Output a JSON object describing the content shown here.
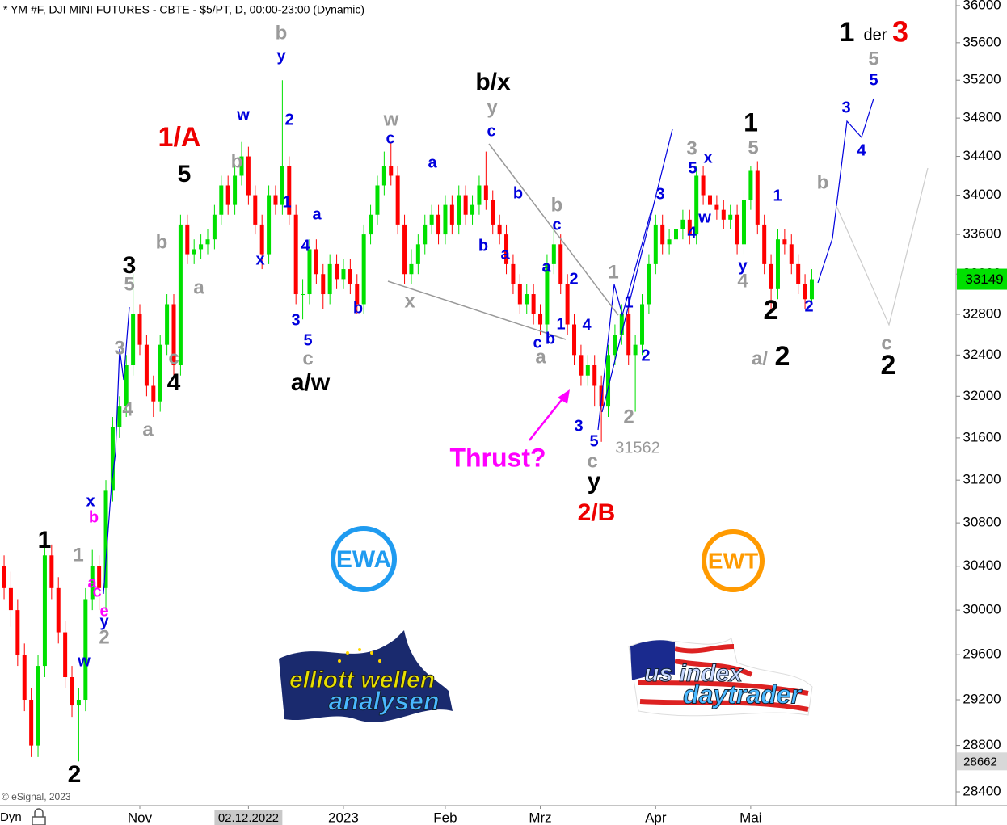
{
  "chart_data": {
    "type": "candlestick",
    "title": "* YM #F, DJI MINI FUTURES - CBTE - $5/PT, D, 00:00-23:00 (Dynamic)",
    "copyright": "© eSignal, 2023",
    "axis_mode": "Dyn",
    "log": true,
    "up_color": "#00e000",
    "down_color": "#ff0000",
    "open": [
      30400,
      30200,
      30000,
      29600,
      29200,
      28800,
      29500,
      30500,
      30200,
      29800,
      29400,
      29150,
      29200,
      30100,
      30400,
      30200,
      31100,
      31700,
      31900,
      32300,
      32800,
      32500,
      32100,
      31950,
      32500,
      32900,
      32300,
      33700,
      33400,
      33450,
      33500,
      33550,
      33800,
      34100,
      33900,
      34200,
      34400,
      34000,
      33700,
      33400,
      34000,
      33900,
      34300,
      33800,
      33000,
      33000,
      33450,
      33200,
      33000,
      33300,
      33150,
      33250,
      33100,
      32900,
      33600,
      33800,
      34100,
      34300,
      34200,
      33700,
      33200,
      33300,
      33500,
      33700,
      33800,
      33600,
      33900,
      33700,
      34000,
      33800,
      33900,
      34100,
      33950,
      33700,
      33600,
      33300,
      33100,
      32900,
      33000,
      32800,
      32700,
      33300,
      33500,
      33100,
      32700,
      32400,
      32200,
      32300,
      32100,
      31900,
      32400,
      32600,
      32800,
      32400,
      32500,
      32900,
      33300,
      33700,
      33500,
      33550,
      33650,
      33750,
      33600,
      34200,
      34000,
      33900,
      33850,
      33750,
      33800,
      33500,
      33950,
      34250,
      33700,
      33300,
      33050,
      33550,
      33500,
      33300,
      33100,
      32950
    ],
    "high": [
      30500,
      30350,
      30100,
      29700,
      29300,
      29600,
      30650,
      30600,
      30300,
      29900,
      29500,
      29300,
      30200,
      30550,
      30500,
      31200,
      31800,
      32000,
      32400,
      33200,
      32900,
      32600,
      32200,
      32600,
      33000,
      33000,
      33800,
      33800,
      33550,
      33600,
      33650,
      33900,
      34200,
      34200,
      34300,
      34550,
      34500,
      34100,
      33800,
      34100,
      34100,
      35200,
      34400,
      33900,
      33150,
      33550,
      33550,
      33300,
      33400,
      33400,
      33350,
      33350,
      33200,
      33700,
      33900,
      34200,
      34450,
      34550,
      34300,
      33800,
      33450,
      33600,
      33800,
      33900,
      33900,
      34000,
      34000,
      34100,
      34100,
      34000,
      34200,
      34450,
      34050,
      33800,
      33700,
      33400,
      33200,
      33100,
      33100,
      32900,
      33400,
      33650,
      33600,
      33200,
      32800,
      32500,
      32400,
      32400,
      32200,
      32500,
      32700,
      32900,
      32900,
      32600,
      33000,
      33400,
      33800,
      33800,
      33650,
      33750,
      33850,
      33850,
      34300,
      34300,
      34100,
      34000,
      33950,
      33900,
      33900,
      34050,
      34300,
      34350,
      33800,
      33400,
      33650,
      33650,
      33600,
      33400,
      33200,
      33250
    ],
    "low": [
      30100,
      29850,
      29500,
      29100,
      28700,
      28700,
      29400,
      30100,
      29700,
      29300,
      29050,
      28662,
      29100,
      30000,
      30000,
      30000,
      31000,
      31600,
      31800,
      32200,
      32400,
      32000,
      31800,
      31850,
      32400,
      32200,
      32200,
      33300,
      33300,
      33350,
      33400,
      33450,
      33700,
      33800,
      33800,
      34100,
      33900,
      33600,
      33250,
      33300,
      33800,
      33800,
      33700,
      32900,
      32750,
      32900,
      33100,
      32850,
      32900,
      33050,
      33050,
      33000,
      32800,
      32800,
      33500,
      33700,
      34000,
      34100,
      33600,
      33100,
      33100,
      33200,
      33400,
      33600,
      33500,
      33500,
      33600,
      33600,
      33700,
      33700,
      33800,
      33850,
      33600,
      33500,
      33200,
      33000,
      32800,
      32800,
      32700,
      32600,
      32600,
      33200,
      33000,
      32600,
      32300,
      32100,
      32100,
      31900,
      31562,
      31800,
      32300,
      32500,
      32300,
      31850,
      32400,
      32800,
      33200,
      33400,
      33400,
      33450,
      33550,
      33500,
      33500,
      33900,
      33800,
      33750,
      33650,
      33650,
      33400,
      33400,
      33850,
      33600,
      33200,
      32850,
      32950,
      33400,
      33200,
      33000,
      32850,
      32900
    ],
    "close": [
      30200,
      30000,
      29600,
      29200,
      28800,
      29500,
      30500,
      30200,
      29800,
      29400,
      29150,
      29200,
      30100,
      30400,
      30200,
      31100,
      31700,
      31900,
      32300,
      32800,
      32500,
      32100,
      31950,
      32500,
      32900,
      32300,
      33700,
      33400,
      33450,
      33500,
      33550,
      33800,
      34100,
      33900,
      34200,
      34400,
      34000,
      33700,
      33400,
      34000,
      33900,
      34300,
      33800,
      33000,
      33000,
      33450,
      33200,
      33000,
      33300,
      33150,
      33250,
      33100,
      32900,
      33600,
      33800,
      34100,
      34300,
      34200,
      33700,
      33200,
      33300,
      33500,
      33700,
      33800,
      33600,
      33900,
      33700,
      34000,
      33800,
      33900,
      34100,
      33950,
      33700,
      33600,
      33300,
      33100,
      32900,
      33000,
      32800,
      32700,
      33300,
      33500,
      33100,
      32700,
      32400,
      32200,
      32300,
      32100,
      31900,
      32400,
      32600,
      32800,
      32400,
      32500,
      32900,
      33300,
      33700,
      33500,
      33550,
      33650,
      33750,
      33600,
      34200,
      34000,
      33900,
      33850,
      33750,
      33800,
      33500,
      33950,
      34250,
      33700,
      33300,
      33050,
      33550,
      33500,
      33300,
      33100,
      32950,
      33149
    ],
    "xlim": [
      -0.6,
      139.9
    ],
    "ylim": [
      28400,
      36000
    ],
    "yticks": [
      28400,
      28800,
      29200,
      29600,
      30000,
      30400,
      30800,
      31200,
      31600,
      32000,
      32400,
      32800,
      33200,
      33600,
      34000,
      34400,
      34800,
      35200,
      35600,
      36000
    ],
    "xticks": [
      {
        "value": 20,
        "label": "Nov"
      },
      {
        "value": 36,
        "label": "02.12.2022"
      },
      {
        "value": 50,
        "label": "2023"
      },
      {
        "value": 65,
        "label": "Feb"
      },
      {
        "value": 79,
        "label": "Mrz"
      },
      {
        "value": 96,
        "label": "Apr"
      },
      {
        "value": 110,
        "label": "Mai"
      }
    ],
    "highlighted_xtick": 1,
    "last_price": 33149,
    "marker_price": 28662,
    "annotations": [
      {
        "color": "#000000",
        "labels": [
          "1",
          "2",
          "3",
          "4",
          "5",
          "a/w",
          "b/x",
          "y",
          "1",
          "2",
          "2",
          "1",
          "2",
          "der"
        ]
      },
      {
        "color": "#ee0000",
        "labels": [
          "1/A",
          "2/B",
          "3"
        ]
      },
      {
        "color": "#9a9a9a",
        "labels": [
          "1",
          "2",
          "3",
          "4",
          "a",
          "5",
          "b",
          "c",
          "a",
          "b",
          "b",
          "c",
          "w",
          "x",
          "y",
          "b",
          "a",
          "1",
          "2",
          "c",
          "3",
          "5",
          "4",
          "a/",
          "b",
          "5",
          "c",
          "31562"
        ]
      },
      {
        "color": "#0000dd",
        "labels": [
          "x",
          "y",
          "w",
          "y",
          "w",
          "2",
          "1",
          "x",
          "a",
          "4",
          "3",
          "5",
          "b",
          "c",
          "a",
          "b",
          "c",
          "b",
          "a",
          "c",
          "a",
          "2",
          "1",
          "b",
          "c",
          "4",
          "3",
          "5",
          "3",
          "1",
          "2",
          "5",
          "x",
          "w",
          "4",
          "y",
          "1",
          "2",
          "3",
          "4",
          "5"
        ]
      },
      {
        "color": "#ff00ff",
        "labels": [
          "b",
          "a",
          "c",
          "e",
          "Thrust?"
        ]
      }
    ]
  },
  "logos": {
    "ewa": "EWA",
    "ewt": "EWT",
    "ewa_brand": [
      "elliott wellen",
      "analysen"
    ],
    "ewt_brand": [
      "us index",
      "daytrader"
    ]
  }
}
